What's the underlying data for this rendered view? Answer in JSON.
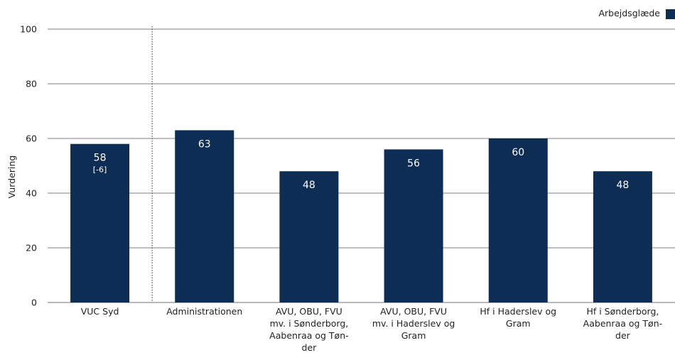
{
  "chart_data": {
    "type": "bar",
    "categories": [
      [
        "VUC Syd"
      ],
      [
        "Administrationen"
      ],
      [
        "AVU, OBU, FVU",
        "mv. i  Sønderborg,",
        "Aabenraa og Tøn-",
        "der"
      ],
      [
        "AVU, OBU, FVU",
        "mv. i Haderslev og",
        "Gram"
      ],
      [
        "Hf i Haderslev og",
        "Gram"
      ],
      [
        "Hf i Sønderborg,",
        "Aabenraa og Tøn-",
        "der"
      ]
    ],
    "series": [
      {
        "name": "Arbejdsglæde",
        "values": [
          58,
          63,
          48,
          56,
          60,
          48
        ]
      }
    ],
    "data_labels": [
      "58",
      "63",
      "48",
      "56",
      "60",
      "48"
    ],
    "data_sublabels": [
      "[-6]",
      "",
      "",
      "",
      "",
      ""
    ],
    "ylabel": "Vurdering",
    "ylim": [
      0,
      100
    ],
    "yticks": [
      "0",
      "20",
      "40",
      "60",
      "80",
      "100"
    ],
    "grid": true,
    "legend_position": "top-right",
    "separator_after_category": 0,
    "colors": {
      "bar": "#0d2d54",
      "grid": "#555555",
      "axis": "#444444"
    }
  }
}
